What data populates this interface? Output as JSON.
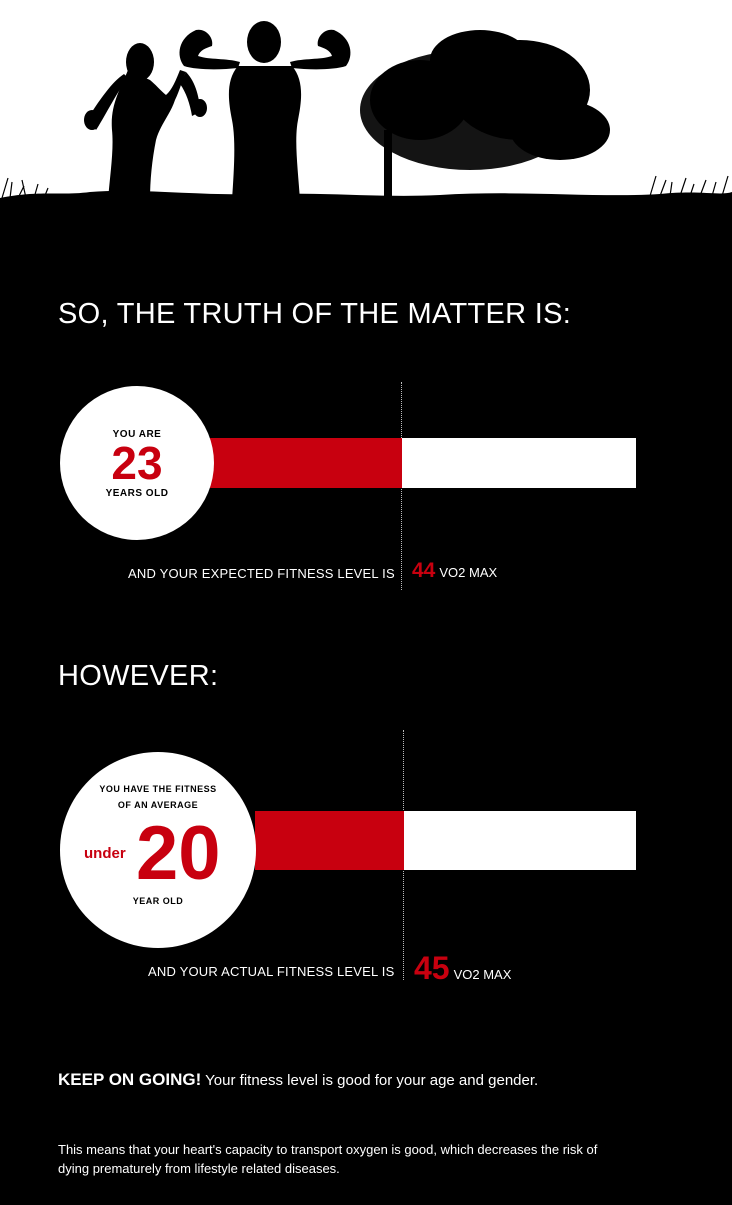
{
  "heading_truth": "SO, THE TRUTH OF THE MATTER IS:",
  "heading_however": "HOWEVER:",
  "expected": {
    "circle_top": "YOU ARE",
    "age": "23",
    "circle_bottom": "YEARS OLD",
    "caption": "AND YOUR EXPECTED FITNESS LEVEL IS",
    "value": "44",
    "unit": "VO2 MAX"
  },
  "actual": {
    "circle_line1": "YOU HAVE THE FITNESS",
    "circle_line2": "OF AN AVERAGE",
    "under_label": "under",
    "age": "20",
    "circle_bottom": "YEAR OLD",
    "caption": "AND YOUR ACTUAL FITNESS LEVEL IS",
    "value": "45",
    "unit": "VO2 MAX"
  },
  "conclusion": {
    "headline": "KEEP ON GOING!",
    "headline_rest": "Your fitness level is good for your age and gender.",
    "body": "This means that your heart's capacity to transport oxygen is good, which decreases the risk of dying prematurely from lifestyle related diseases."
  },
  "colors": {
    "accent": "#c8000f",
    "background": "#000000",
    "bar_fill": "#ffffff"
  }
}
